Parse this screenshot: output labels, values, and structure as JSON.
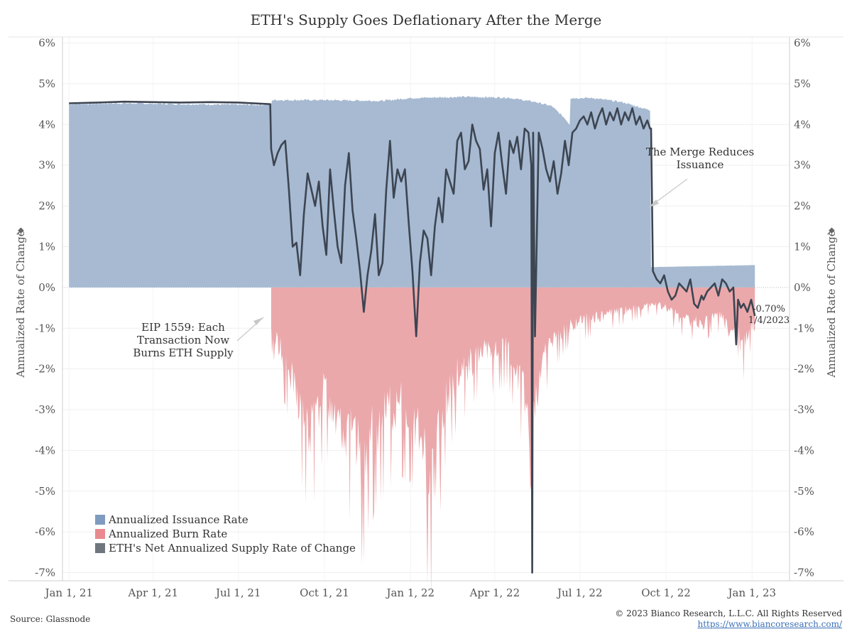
{
  "chart_data": {
    "type": "area",
    "title": "ETH's Supply Goes Deflationary After the Merge",
    "ylabel": "Annualized Rate of Change",
    "ylim": [
      -7,
      6
    ],
    "xlim": [
      "2020-12-25",
      "2023-02-10"
    ],
    "y_ticks": [
      "6%",
      "5%",
      "4%",
      "3%",
      "2%",
      "1%",
      "0%",
      "-1%",
      "-2%",
      "-3%",
      "-4%",
      "-5%",
      "-6%",
      "-7%"
    ],
    "y_tick_values": [
      6,
      5,
      4,
      3,
      2,
      1,
      0,
      -1,
      -2,
      -3,
      -4,
      -5,
      -6,
      -7
    ],
    "x_ticks": [
      {
        "label": "Jan 1, 21",
        "date": "2021-01-01"
      },
      {
        "label": "Apr 1, 21",
        "date": "2021-04-01"
      },
      {
        "label": "Jul 1, 21",
        "date": "2021-07-01"
      },
      {
        "label": "Oct 1, 21",
        "date": "2021-10-01"
      },
      {
        "label": "Jan 1, 22",
        "date": "2022-01-01"
      },
      {
        "label": "Apr 1, 22",
        "date": "2022-04-01"
      },
      {
        "label": "Jul 1, 22",
        "date": "2022-07-01"
      },
      {
        "label": "Oct 1, 22",
        "date": "2022-10-01"
      },
      {
        "label": "Jan 1, 23",
        "date": "2023-01-01"
      }
    ],
    "gridlines": true,
    "legend_position": "bottom-left",
    "series": [
      {
        "name": "Annualized Issuance Rate",
        "color": "#a7bad2",
        "x": [
          "2021-01-01",
          "2021-03-01",
          "2021-05-01",
          "2021-08-05",
          "2021-08-06",
          "2021-10-01",
          "2021-12-01",
          "2022-01-01",
          "2022-03-01",
          "2022-04-15",
          "2022-05-15",
          "2022-06-01",
          "2022-06-15",
          "2022-06-20",
          "2022-06-21",
          "2022-07-15",
          "2022-08-15",
          "2022-09-14",
          "2022-09-15",
          "2022-11-01",
          "2022-12-15",
          "2023-01-04"
        ],
        "y": [
          4.5,
          4.52,
          4.5,
          4.48,
          4.6,
          4.6,
          4.58,
          4.65,
          4.68,
          4.66,
          4.55,
          4.45,
          4.15,
          4.0,
          4.65,
          4.65,
          4.55,
          4.35,
          0.5,
          0.52,
          0.54,
          0.55
        ]
      },
      {
        "name": "Annualized Burn Rate",
        "color": "#eba8ab",
        "x": [
          "2021-08-05",
          "2021-08-10",
          "2021-08-20",
          "2021-09-01",
          "2021-09-15",
          "2021-10-01",
          "2021-10-15",
          "2021-11-01",
          "2021-11-10",
          "2021-11-20",
          "2021-12-01",
          "2021-12-15",
          "2022-01-01",
          "2022-01-10",
          "2022-01-24",
          "2022-02-05",
          "2022-02-20",
          "2022-03-05",
          "2022-03-20",
          "2022-04-01",
          "2022-04-15",
          "2022-05-01",
          "2022-05-11",
          "2022-05-12",
          "2022-05-20",
          "2022-06-01",
          "2022-06-15",
          "2022-07-01",
          "2022-07-15",
          "2022-08-01",
          "2022-08-15",
          "2022-09-01",
          "2022-09-15",
          "2022-10-01",
          "2022-10-15",
          "2022-11-01",
          "2022-11-10",
          "2022-11-20",
          "2022-12-01",
          "2022-12-10",
          "2022-12-15",
          "2022-12-20",
          "2023-01-01",
          "2023-01-04"
        ],
        "y": [
          -1.2,
          -1.5,
          -2.2,
          -3.2,
          -4.4,
          -3.0,
          -3.8,
          -4.6,
          -5.2,
          -4.3,
          -4.0,
          -3.5,
          -3.6,
          -4.5,
          -6.0,
          -3.5,
          -2.6,
          -2.3,
          -1.9,
          -2.0,
          -1.8,
          -3.0,
          -5.6,
          -4.0,
          -2.3,
          -1.6,
          -1.2,
          -1.0,
          -0.9,
          -0.8,
          -0.7,
          -0.6,
          -0.5,
          -0.6,
          -0.9,
          -1.0,
          -1.1,
          -0.8,
          -0.9,
          -1.5,
          -0.9,
          -1.9,
          -1.1,
          -1.2
        ]
      },
      {
        "name": "ETH's Net Annualized Supply Rate of Change",
        "color": "#3d4552",
        "x": [
          "2021-01-01",
          "2021-02-01",
          "2021-03-01",
          "2021-04-01",
          "2021-05-01",
          "2021-06-01",
          "2021-07-01",
          "2021-08-04",
          "2021-08-05",
          "2021-08-08",
          "2021-08-12",
          "2021-08-16",
          "2021-08-20",
          "2021-08-24",
          "2021-08-28",
          "2021-09-01",
          "2021-09-05",
          "2021-09-09",
          "2021-09-13",
          "2021-09-17",
          "2021-09-21",
          "2021-09-25",
          "2021-09-29",
          "2021-10-03",
          "2021-10-07",
          "2021-10-11",
          "2021-10-15",
          "2021-10-19",
          "2021-10-23",
          "2021-10-27",
          "2021-10-31",
          "2021-11-04",
          "2021-11-08",
          "2021-11-12",
          "2021-11-16",
          "2021-11-20",
          "2021-11-24",
          "2021-11-28",
          "2021-12-02",
          "2021-12-06",
          "2021-12-10",
          "2021-12-14",
          "2021-12-18",
          "2021-12-22",
          "2021-12-26",
          "2021-12-30",
          "2022-01-03",
          "2022-01-07",
          "2022-01-11",
          "2022-01-15",
          "2022-01-19",
          "2022-01-23",
          "2022-01-27",
          "2022-01-31",
          "2022-02-04",
          "2022-02-08",
          "2022-02-12",
          "2022-02-16",
          "2022-02-20",
          "2022-02-24",
          "2022-02-28",
          "2022-03-04",
          "2022-03-08",
          "2022-03-12",
          "2022-03-16",
          "2022-03-20",
          "2022-03-24",
          "2022-03-28",
          "2022-04-01",
          "2022-04-05",
          "2022-04-09",
          "2022-04-13",
          "2022-04-17",
          "2022-04-21",
          "2022-04-25",
          "2022-04-29",
          "2022-05-03",
          "2022-05-07",
          "2022-05-10",
          "2022-05-11",
          "2022-05-12",
          "2022-05-14",
          "2022-05-18",
          "2022-05-22",
          "2022-05-26",
          "2022-05-30",
          "2022-06-03",
          "2022-06-07",
          "2022-06-11",
          "2022-06-15",
          "2022-06-19",
          "2022-06-23",
          "2022-06-27",
          "2022-07-01",
          "2022-07-05",
          "2022-07-09",
          "2022-07-13",
          "2022-07-17",
          "2022-07-21",
          "2022-07-25",
          "2022-07-29",
          "2022-08-02",
          "2022-08-06",
          "2022-08-10",
          "2022-08-14",
          "2022-08-18",
          "2022-08-22",
          "2022-08-26",
          "2022-08-30",
          "2022-09-03",
          "2022-09-07",
          "2022-09-11",
          "2022-09-14",
          "2022-09-15",
          "2022-09-17",
          "2022-09-21",
          "2022-09-25",
          "2022-09-29",
          "2022-10-03",
          "2022-10-07",
          "2022-10-11",
          "2022-10-15",
          "2022-10-19",
          "2022-10-23",
          "2022-10-27",
          "2022-10-31",
          "2022-11-04",
          "2022-11-08",
          "2022-11-10",
          "2022-11-14",
          "2022-11-18",
          "2022-11-22",
          "2022-11-26",
          "2022-11-30",
          "2022-12-04",
          "2022-12-08",
          "2022-12-12",
          "2022-12-15",
          "2022-12-17",
          "2022-12-20",
          "2022-12-23",
          "2022-12-27",
          "2022-12-31",
          "2023-01-04"
        ],
        "y": [
          4.52,
          4.54,
          4.56,
          4.55,
          4.54,
          4.55,
          4.54,
          4.5,
          3.4,
          3.0,
          3.3,
          3.5,
          3.6,
          2.4,
          1.0,
          1.1,
          0.3,
          1.8,
          2.8,
          2.4,
          2.0,
          2.6,
          1.5,
          0.8,
          2.9,
          1.9,
          1.0,
          0.6,
          2.5,
          3.3,
          1.9,
          1.2,
          0.4,
          -0.6,
          0.3,
          0.9,
          1.8,
          0.3,
          0.6,
          2.4,
          3.6,
          2.2,
          2.9,
          2.6,
          2.9,
          1.6,
          0.4,
          -1.2,
          0.6,
          1.4,
          1.2,
          0.3,
          1.5,
          2.2,
          1.6,
          2.9,
          2.6,
          2.3,
          3.6,
          3.8,
          2.9,
          3.1,
          4.0,
          3.6,
          3.4,
          2.4,
          2.9,
          1.5,
          3.3,
          3.8,
          3.0,
          2.3,
          3.6,
          3.3,
          3.7,
          2.9,
          3.9,
          3.8,
          3.0,
          -7.0,
          3.8,
          -1.2,
          3.8,
          3.4,
          2.9,
          2.6,
          3.1,
          2.3,
          2.8,
          3.6,
          3.0,
          3.8,
          3.9,
          4.1,
          4.2,
          4.0,
          4.3,
          3.9,
          4.2,
          4.4,
          4.0,
          4.3,
          4.1,
          4.4,
          4.0,
          4.3,
          4.1,
          4.4,
          4.0,
          4.2,
          3.9,
          4.1,
          3.9,
          3.9,
          0.4,
          0.2,
          0.1,
          0.3,
          -0.1,
          -0.3,
          -0.2,
          0.1,
          0.0,
          -0.1,
          0.2,
          -0.4,
          -0.5,
          -0.2,
          -0.3,
          -0.1,
          0.0,
          0.1,
          -0.2,
          0.2,
          0.1,
          -0.1,
          0.0,
          -1.4,
          -0.3,
          -0.5,
          -0.4,
          -0.6,
          -0.3,
          -0.7
        ]
      }
    ],
    "annotations": [
      {
        "text": "The Merge Reduces Issuance"
      },
      {
        "text": "EIP 1559: Each Transaction Now Burns ETH Supply"
      },
      {
        "text": "-0.70% 1/4/2023"
      }
    ]
  },
  "title": "ETH's Supply Goes Deflationary After the Merge",
  "y_axis_title_left": "Annualized Rate of Change",
  "y_axis_title_right": "Annualized Rate of Change",
  "annotations": {
    "merge_line1": "The Merge Reduces",
    "merge_line2": "Issuance",
    "eip_line1": "EIP 1559: Each",
    "eip_line2": "Transaction Now",
    "eip_line3": "Burns ETH Supply",
    "end_value": "-0.70%",
    "end_date": "1/4/2023"
  },
  "legend": {
    "issuance": "Annualized Issuance Rate",
    "burn": "Annualized Burn Rate",
    "net": "ETH's Net Annualized Supply Rate of Change"
  },
  "colors": {
    "issuance": "#a7bad2",
    "issuance_swatch": "#7f9bbf",
    "burn": "#eba8ab",
    "burn_swatch": "#e88a8e",
    "net": "#3d4552",
    "net_swatch": "#6f767e"
  },
  "footer": {
    "source": "Source: Glassnode",
    "copyright": "© 2023 Bianco Research, L.L.C. All Rights Reserved",
    "url": "https://www.biancoresearch.com/"
  }
}
